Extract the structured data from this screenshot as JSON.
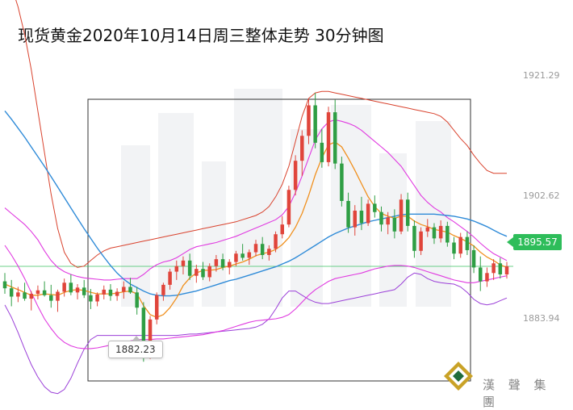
{
  "chart_data": {
    "type": "candlestick",
    "title": "现货黄金2020年10月14日周三整体走势 30分钟图",
    "price_labels": [
      "1921.29",
      "1902.62",
      "1883.94"
    ],
    "current_price": "1895.57",
    "low_marker": "1882.23",
    "ylim": [
      1876,
      1934
    ],
    "candles": [
      [
        1893.4,
        1894.6,
        1891.6,
        1892.4
      ],
      [
        1892.4,
        1893.6,
        1889.8,
        1891.2
      ],
      [
        1891.2,
        1892.6,
        1890.4,
        1891.8
      ],
      [
        1891.8,
        1893.2,
        1890.6,
        1890.9
      ],
      [
        1890.9,
        1892.0,
        1889.2,
        1891.6
      ],
      [
        1891.6,
        1892.8,
        1890.8,
        1892.1
      ],
      [
        1892.1,
        1893.4,
        1891.2,
        1891.4
      ],
      [
        1891.4,
        1892.9,
        1889.6,
        1890.6
      ],
      [
        1890.6,
        1892.2,
        1889.0,
        1891.9
      ],
      [
        1891.9,
        1893.8,
        1891.2,
        1893.2
      ],
      [
        1893.2,
        1894.4,
        1891.4,
        1891.8
      ],
      [
        1891.8,
        1893.0,
        1890.8,
        1892.5
      ],
      [
        1892.5,
        1893.6,
        1891.0,
        1891.4
      ],
      [
        1891.4,
        1892.3,
        1889.4,
        1890.5
      ],
      [
        1890.5,
        1891.8,
        1889.8,
        1891.5
      ],
      [
        1891.5,
        1892.8,
        1890.8,
        1892.2
      ],
      [
        1892.2,
        1893.0,
        1890.6,
        1891.3
      ],
      [
        1891.3,
        1892.4,
        1890.6,
        1891.9
      ],
      [
        1891.9,
        1893.4,
        1890.9,
        1892.6
      ],
      [
        1892.6,
        1893.9,
        1891.6,
        1891.8
      ],
      [
        1891.8,
        1892.6,
        1888.6,
        1889.6
      ],
      [
        1889.6,
        1890.4,
        1881.8,
        1883.6
      ],
      [
        1883.6,
        1888.4,
        1882.2,
        1887.9
      ],
      [
        1887.9,
        1891.8,
        1887.2,
        1891.4
      ],
      [
        1891.4,
        1893.2,
        1890.6,
        1892.9
      ],
      [
        1892.9,
        1895.2,
        1892.2,
        1894.8
      ],
      [
        1894.8,
        1896.4,
        1893.6,
        1895.6
      ],
      [
        1895.6,
        1897.0,
        1894.4,
        1896.4
      ],
      [
        1896.4,
        1897.4,
        1893.6,
        1894.2
      ],
      [
        1894.2,
        1895.8,
        1893.2,
        1895.2
      ],
      [
        1895.2,
        1896.2,
        1893.6,
        1894.0
      ],
      [
        1894.0,
        1896.0,
        1893.4,
        1895.6
      ],
      [
        1895.6,
        1897.2,
        1894.8,
        1896.6
      ],
      [
        1896.6,
        1897.4,
        1895.0,
        1895.4
      ],
      [
        1895.4,
        1896.6,
        1894.4,
        1896.2
      ],
      [
        1896.2,
        1897.8,
        1895.6,
        1897.4
      ],
      [
        1897.4,
        1898.8,
        1896.4,
        1896.8
      ],
      [
        1896.8,
        1898.0,
        1895.8,
        1897.6
      ],
      [
        1897.6,
        1899.4,
        1897.0,
        1898.8
      ],
      [
        1898.8,
        1899.8,
        1896.6,
        1897.2
      ],
      [
        1897.2,
        1898.6,
        1896.4,
        1898.1
      ],
      [
        1898.1,
        1900.6,
        1897.6,
        1900.2
      ],
      [
        1900.2,
        1902.8,
        1899.6,
        1901.6
      ],
      [
        1901.6,
        1907.2,
        1901.2,
        1906.6
      ],
      [
        1906.6,
        1911.6,
        1905.8,
        1910.8
      ],
      [
        1910.8,
        1915.2,
        1908.6,
        1914.4
      ],
      [
        1914.4,
        1919.8,
        1913.2,
        1918.8
      ],
      [
        1918.8,
        1920.6,
        1912.6,
        1913.4
      ],
      [
        1913.4,
        1915.4,
        1909.8,
        1910.6
      ],
      [
        1910.6,
        1918.6,
        1910.0,
        1917.8
      ],
      [
        1917.8,
        1919.6,
        1909.6,
        1910.4
      ],
      [
        1910.4,
        1911.4,
        1904.2,
        1905.0
      ],
      [
        1905.0,
        1906.2,
        1900.4,
        1901.2
      ],
      [
        1901.2,
        1904.4,
        1900.0,
        1903.6
      ],
      [
        1903.6,
        1905.6,
        1900.8,
        1901.8
      ],
      [
        1901.8,
        1905.2,
        1901.4,
        1904.6
      ],
      [
        1904.6,
        1905.8,
        1902.6,
        1903.4
      ],
      [
        1903.4,
        1904.2,
        1900.6,
        1901.6
      ],
      [
        1901.6,
        1903.4,
        1900.2,
        1902.6
      ],
      [
        1902.6,
        1903.8,
        1899.6,
        1900.6
      ],
      [
        1900.6,
        1906.0,
        1900.2,
        1905.2
      ],
      [
        1905.2,
        1906.2,
        1900.6,
        1901.4
      ],
      [
        1901.4,
        1902.2,
        1896.8,
        1897.8
      ],
      [
        1897.8,
        1901.2,
        1897.2,
        1900.6
      ],
      [
        1900.6,
        1902.4,
        1899.8,
        1901.2
      ],
      [
        1901.2,
        1901.8,
        1898.8,
        1899.6
      ],
      [
        1899.6,
        1902.2,
        1899.0,
        1901.4
      ],
      [
        1901.4,
        1902.0,
        1898.4,
        1899.0
      ],
      [
        1899.0,
        1899.8,
        1896.6,
        1897.4
      ],
      [
        1897.4,
        1900.4,
        1896.8,
        1899.8
      ],
      [
        1899.8,
        1900.6,
        1897.2,
        1897.9
      ],
      [
        1897.9,
        1898.6,
        1894.6,
        1895.4
      ],
      [
        1895.4,
        1897.0,
        1892.0,
        1893.4
      ],
      [
        1893.4,
        1895.4,
        1892.6,
        1894.6
      ],
      [
        1894.6,
        1896.6,
        1893.6,
        1896.0
      ],
      [
        1896.0,
        1896.8,
        1893.8,
        1894.4
      ],
      [
        1894.4,
        1896.2,
        1893.8,
        1895.57
      ]
    ],
    "ma_short": [
      1893.0,
      1892.6,
      1892.2,
      1891.8,
      1891.4,
      1891.4,
      1891.6,
      1891.5,
      1891.4,
      1891.8,
      1892.1,
      1892.2,
      1892.1,
      1891.8,
      1891.6,
      1891.6,
      1891.6,
      1891.7,
      1891.9,
      1892.0,
      1891.6,
      1889.9,
      1888.6,
      1888.2,
      1888.6,
      1889.6,
      1891.0,
      1892.8,
      1893.9,
      1894.6,
      1895.0,
      1895.0,
      1895.1,
      1895.4,
      1895.6,
      1895.9,
      1896.2,
      1896.6,
      1897.1,
      1897.4,
      1897.6,
      1898.0,
      1898.7,
      1899.7,
      1901.2,
      1903.2,
      1905.8,
      1908.8,
      1911.2,
      1913.1,
      1913.5,
      1912.8,
      1911.2,
      1909.4,
      1907.5,
      1905.6,
      1904.2,
      1903.2,
      1902.8,
      1902.5,
      1902.8,
      1902.8,
      1902.1,
      1901.6,
      1901.3,
      1900.9,
      1900.7,
      1900.5,
      1900.0,
      1899.6,
      1899.1,
      1898.5,
      1897.6,
      1896.9,
      1896.4,
      1895.8,
      1895.4
    ],
    "ma_long": [
      1918.0,
      1916.8,
      1915.5,
      1914.2,
      1912.8,
      1911.4,
      1910.0,
      1908.5,
      1907.0,
      1905.5,
      1904.0,
      1902.5,
      1901.0,
      1899.6,
      1898.2,
      1896.9,
      1895.7,
      1894.6,
      1893.7,
      1893.0,
      1892.5,
      1892.0,
      1891.6,
      1891.4,
      1891.3,
      1891.3,
      1891.4,
      1891.6,
      1891.8,
      1892.0,
      1892.3,
      1892.6,
      1892.9,
      1893.2,
      1893.5,
      1893.7,
      1894.0,
      1894.3,
      1894.6,
      1894.9,
      1895.2,
      1895.5,
      1895.9,
      1896.3,
      1896.8,
      1897.4,
      1898.0,
      1898.6,
      1899.2,
      1899.8,
      1900.3,
      1900.7,
      1901.1,
      1901.4,
      1901.7,
      1902.0,
      1902.2,
      1902.4,
      1902.6,
      1902.8,
      1903.0,
      1903.1,
      1903.1,
      1903.1,
      1903.1,
      1903.1,
      1903.0,
      1902.9,
      1902.8,
      1902.6,
      1902.4,
      1902.1,
      1901.7,
      1901.3,
      1900.8,
      1900.3,
      1899.9
    ],
    "bb_upper": [
      1904.0,
      1903.2,
      1902.4,
      1901.6,
      1900.6,
      1899.4,
      1897.8,
      1896.4,
      1895.4,
      1894.8,
      1894.4,
      1894.1,
      1893.9,
      1893.8,
      1893.7,
      1893.6,
      1893.6,
      1893.7,
      1893.8,
      1893.8,
      1893.8,
      1894.4,
      1895.2,
      1895.8,
      1896.2,
      1896.4,
      1896.8,
      1897.4,
      1898.0,
      1898.4,
      1898.6,
      1898.8,
      1899.0,
      1899.3,
      1899.6,
      1899.9,
      1900.3,
      1900.7,
      1901.1,
      1901.5,
      1901.9,
      1902.3,
      1903.0,
      1904.2,
      1906.2,
      1908.6,
      1911.2,
      1913.8,
      1915.4,
      1916.4,
      1916.7,
      1916.5,
      1916.2,
      1915.8,
      1915.2,
      1914.4,
      1913.6,
      1912.8,
      1912.0,
      1911.0,
      1910.0,
      1908.6,
      1907.2,
      1905.8,
      1904.8,
      1904.0,
      1903.4,
      1902.6,
      1902.0,
      1901.3,
      1900.6,
      1899.8,
      1898.9,
      1898.1,
      1897.4,
      1896.9,
      1896.4
    ],
    "bb_lower": [
      1898.6,
      1897.2,
      1895.6,
      1893.8,
      1891.8,
      1889.8,
      1888.0,
      1886.6,
      1885.4,
      1884.6,
      1884.1,
      1883.8,
      1883.7,
      1883.7,
      1883.8,
      1884.0,
      1884.2,
      1884.4,
      1884.6,
      1884.8,
      1885.0,
      1885.0,
      1885.0,
      1885.1,
      1885.1,
      1885.2,
      1885.3,
      1885.4,
      1885.5,
      1885.6,
      1885.7,
      1885.9,
      1886.1,
      1886.3,
      1886.6,
      1886.9,
      1887.2,
      1887.5,
      1887.7,
      1887.8,
      1887.9,
      1888.0,
      1888.2,
      1888.6,
      1889.4,
      1890.4,
      1891.4,
      1892.2,
      1892.8,
      1893.4,
      1893.8,
      1894.0,
      1894.2,
      1894.4,
      1894.6,
      1894.9,
      1895.2,
      1895.4,
      1895.6,
      1895.7,
      1895.7,
      1895.6,
      1895.4,
      1895.1,
      1894.8,
      1894.5,
      1894.2,
      1893.9,
      1893.6,
      1893.4,
      1893.2,
      1893.2,
      1893.4,
      1893.6,
      1893.8,
      1894.0,
      1894.2
    ],
    "bb_outer_upper": [
      1938.0,
      1936.0,
      1933.0,
      1929.0,
      1924.0,
      1918.0,
      1912.0,
      1906.0,
      1901.0,
      1897.6,
      1896.0,
      1895.4,
      1895.6,
      1896.4,
      1897.2,
      1897.8,
      1898.2,
      1898.4,
      1898.6,
      1898.8,
      1899.0,
      1899.2,
      1899.4,
      1899.6,
      1899.8,
      1900.0,
      1900.2,
      1900.4,
      1900.6,
      1900.8,
      1901.0,
      1901.2,
      1901.4,
      1901.6,
      1901.8,
      1902.0,
      1902.3,
      1902.6,
      1902.9,
      1903.4,
      1904.2,
      1905.6,
      1907.4,
      1910.0,
      1913.6,
      1917.2,
      1919.8,
      1920.6,
      1920.8,
      1920.8,
      1920.6,
      1920.4,
      1920.2,
      1920.0,
      1919.8,
      1919.6,
      1919.4,
      1919.2,
      1919.0,
      1918.8,
      1918.6,
      1918.4,
      1918.2,
      1918.0,
      1917.8,
      1917.6,
      1917.2,
      1916.4,
      1915.2,
      1914.0,
      1913.0,
      1911.6,
      1910.4,
      1909.4,
      1909.0,
      1909.0,
      1909.0
    ],
    "bb_outer_lower": [
      1890.0,
      1888.2,
      1886.0,
      1883.6,
      1881.4,
      1879.6,
      1878.2,
      1877.4,
      1877.2,
      1877.8,
      1879.4,
      1881.6,
      1883.6,
      1885.0,
      1885.6,
      1885.6,
      1885.6,
      1885.6,
      1885.6,
      1885.6,
      1885.6,
      1885.6,
      1885.6,
      1885.6,
      1885.6,
      1885.6,
      1885.6,
      1885.7,
      1885.8,
      1885.8,
      1885.9,
      1886.0,
      1886.1,
      1886.2,
      1886.3,
      1886.4,
      1886.5,
      1886.6,
      1886.8,
      1887.2,
      1888.0,
      1889.4,
      1891.0,
      1892.0,
      1892.0,
      1891.4,
      1890.8,
      1890.4,
      1890.2,
      1890.2,
      1890.4,
      1890.6,
      1890.8,
      1891.0,
      1891.2,
      1891.4,
      1891.6,
      1891.8,
      1892.0,
      1892.2,
      1893.0,
      1894.0,
      1894.6,
      1894.4,
      1893.8,
      1893.4,
      1893.2,
      1893.1,
      1893.0,
      1892.6,
      1891.8,
      1890.8,
      1890.2,
      1890.0,
      1890.2,
      1890.6,
      1891.0
    ]
  },
  "colors": {
    "up": "#e0453b",
    "down": "#2f9e44",
    "ma_short": "#f0901e",
    "ma_long": "#2f8bd8",
    "bb_inner": "#e03ae0",
    "bb_outer_upper": "#d9422d",
    "bb_outer_lower": "#9b3fd8",
    "current_line": "#2ebd5a"
  },
  "brand": {
    "name": "漢 聲 集 團"
  }
}
